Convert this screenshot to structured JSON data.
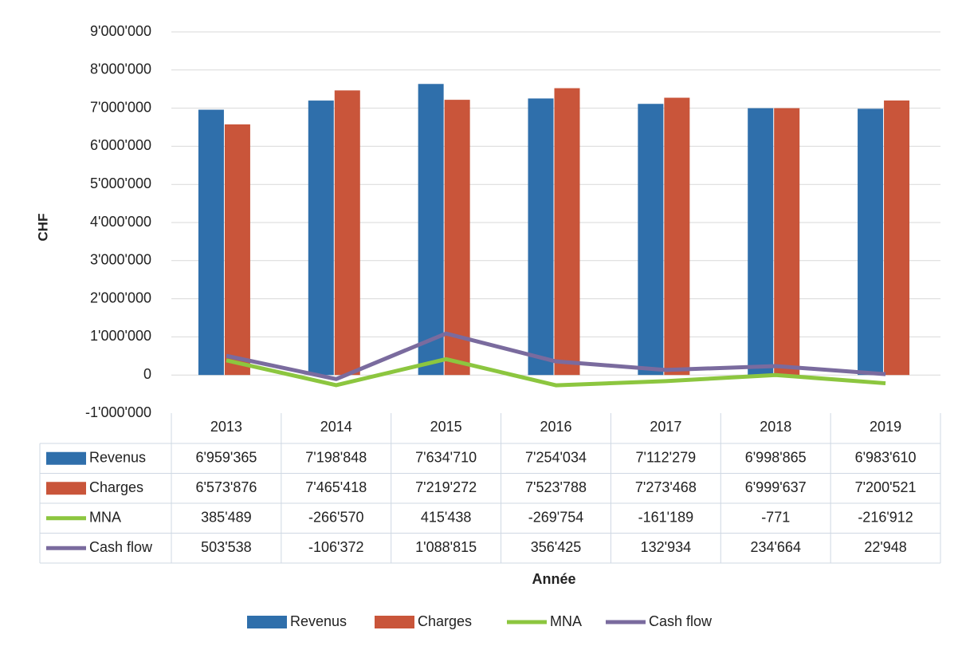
{
  "chart_data": {
    "type": "bar",
    "y_label": "CHF",
    "x_label": "Année",
    "categories": [
      "2013",
      "2014",
      "2015",
      "2016",
      "2017",
      "2018",
      "2019"
    ],
    "ylim": [
      -1000000,
      9000000
    ],
    "yticks": [
      {
        "value": -1000000,
        "label": "-1'000'000"
      },
      0,
      {
        "value": 1000000,
        "label": "1'000'000"
      },
      {
        "value": 2000000,
        "label": "2'000'000"
      },
      {
        "value": 3000000,
        "label": "3'000'000"
      },
      {
        "value": 4000000,
        "label": "4'000'000"
      },
      {
        "value": 5000000,
        "label": "5'000'000"
      },
      {
        "value": 6000000,
        "label": "6'000'000"
      },
      {
        "value": 7000000,
        "label": "7'000'000"
      },
      {
        "value": 8000000,
        "label": "8'000'000"
      },
      {
        "value": 9000000,
        "label": "9'000'000"
      }
    ],
    "grid": true,
    "legend": "bottom",
    "series": [
      {
        "name": "Revenus",
        "type": "bar",
        "color": "#2f6fab",
        "values": [
          6959365,
          7198848,
          7634710,
          7254034,
          7112279,
          6998865,
          6983610
        ],
        "value_labels": [
          "6'959'365",
          "7'198'848",
          "7'634'710",
          "7'254'034",
          "7'112'279",
          "6'998'865",
          "6'983'610"
        ]
      },
      {
        "name": "Charges",
        "type": "bar",
        "color": "#c9553a",
        "values": [
          6573876,
          7465418,
          7219272,
          7523788,
          7273468,
          6999637,
          7200521
        ],
        "value_labels": [
          "6'573'876",
          "7'465'418",
          "7'219'272",
          "7'523'788",
          "7'273'468",
          "6'999'637",
          "7'200'521"
        ]
      },
      {
        "name": "MNA",
        "type": "line",
        "color": "#8cc63f",
        "values": [
          385489,
          -266570,
          415438,
          -269754,
          -161189,
          -771,
          -216912
        ],
        "value_labels": [
          "385'489",
          "-266'570",
          "415'438",
          "-269'754",
          "-161'189",
          "-771",
          "-216'912"
        ]
      },
      {
        "name": "Cash flow",
        "type": "line",
        "color": "#7a6b9e",
        "values": [
          503538,
          -106372,
          1088815,
          356425,
          132934,
          234664,
          22948
        ],
        "value_labels": [
          "503'538",
          "-106'372",
          "1'088'815",
          "356'425",
          "132'934",
          "234'664",
          "22'948"
        ]
      }
    ]
  }
}
